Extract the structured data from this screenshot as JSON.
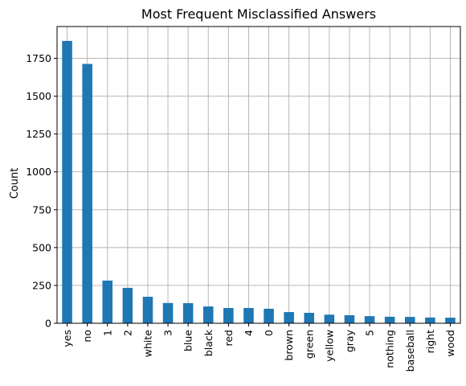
{
  "chart_data": {
    "type": "bar",
    "title": "Most Frequent Misclassified Answers",
    "xlabel": "",
    "ylabel": "Count",
    "categories": [
      "yes",
      "no",
      "1",
      "2",
      "white",
      "3",
      "blue",
      "black",
      "red",
      "4",
      "0",
      "brown",
      "green",
      "yellow",
      "gray",
      "5",
      "nothing",
      "baseball",
      "right",
      "wood"
    ],
    "values": [
      1865,
      1713,
      282,
      234,
      175,
      134,
      133,
      111,
      101,
      101,
      96,
      74,
      69,
      57,
      53,
      47,
      43,
      42,
      38,
      37
    ],
    "ylim": [
      0,
      1960
    ],
    "yticks": [
      0,
      250,
      500,
      750,
      1000,
      1250,
      1500,
      1750
    ],
    "grid": true,
    "bar_color": "#1f77b4"
  }
}
